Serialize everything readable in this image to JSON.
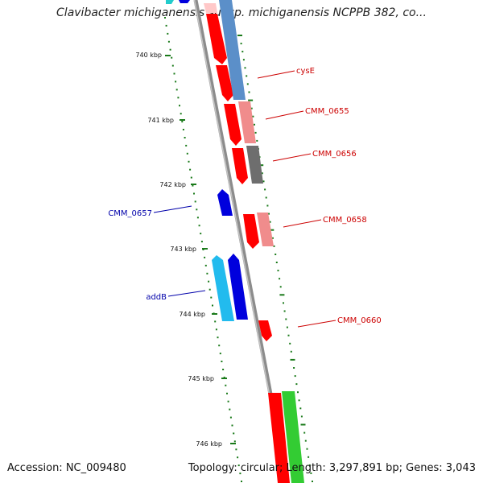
{
  "header": {
    "title": "Clavibacter michiganensis subsp. michiganensis NCPPB 382, co..."
  },
  "footer": {
    "accession": "Accession: NC_009480",
    "summary": "Topology: circular; Length: 3,297,891 bp; Genes: 3,043"
  },
  "colors": {
    "backbone": "#8c8c8c",
    "ticks": "#1a7a1a",
    "gene_label_forward": "#cc0000",
    "gene_label_reverse": "#0000aa"
  },
  "ruler": {
    "unit": "kbp",
    "labels": [
      "740 kbp",
      "741 kbp",
      "742 kbp",
      "743 kbp",
      "744 kbp",
      "745 kbp",
      "746 kbp"
    ]
  },
  "gene_labels": [
    {
      "text": "cysE",
      "strand": "forward"
    },
    {
      "text": "CMM_0655",
      "strand": "forward"
    },
    {
      "text": "CMM_0656",
      "strand": "forward"
    },
    {
      "text": "CMM_0657",
      "strand": "reverse"
    },
    {
      "text": "CMM_0658",
      "strand": "forward"
    },
    {
      "text": "addB",
      "strand": "reverse"
    },
    {
      "text": "CMM_0660",
      "strand": "forward"
    }
  ]
}
